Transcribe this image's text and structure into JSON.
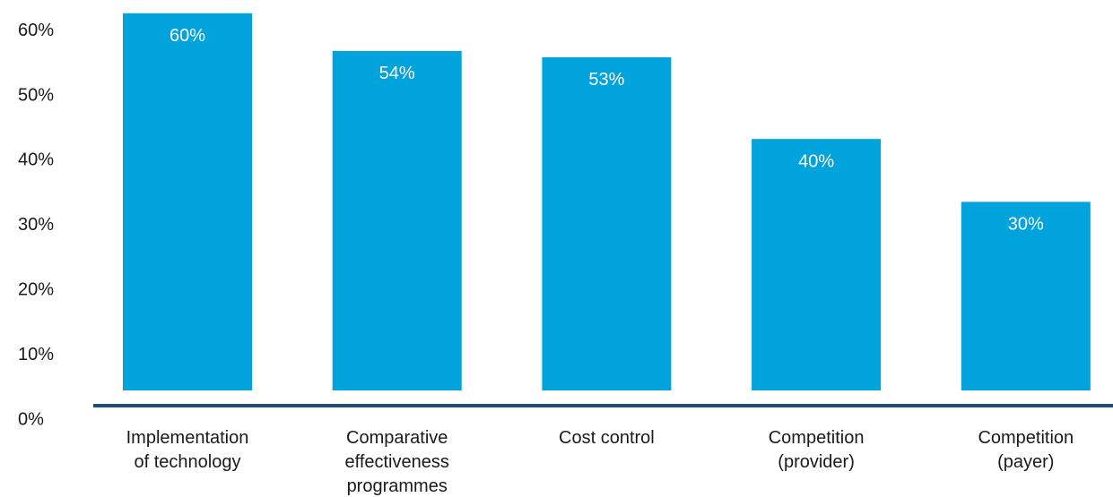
{
  "chart_data": {
    "type": "bar",
    "categories": [
      [
        "Implementation",
        "of technology"
      ],
      [
        "Comparative",
        "effectiveness",
        "programmes"
      ],
      [
        "Cost control"
      ],
      [
        "Competition",
        "(provider)"
      ],
      [
        "Competition",
        "(payer)"
      ]
    ],
    "values": [
      60,
      54,
      53,
      40,
      30
    ],
    "data_labels": [
      "60%",
      "54%",
      "53%",
      "40%",
      "30%"
    ],
    "y_ticks": [
      "0%",
      "10%",
      "20%",
      "30%",
      "40%",
      "50%",
      "60%"
    ],
    "ylim": [
      0,
      60
    ],
    "grid": false,
    "legend": "none",
    "colors": {
      "bar": "#00a3dc",
      "axis": "#1f4e79",
      "text": "#1a1a1a",
      "data_label": "#ffffff"
    }
  }
}
